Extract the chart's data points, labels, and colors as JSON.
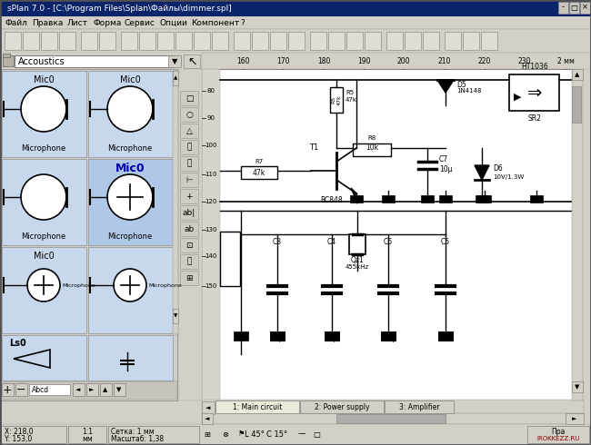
{
  "title_bar": "sPlan 7.0 - [C:\\Program Files\\Splan\\Файлы\\dimmer.spl]",
  "menu_items": [
    "Файл",
    "Правка",
    "Лист",
    "Форма",
    "Сервис",
    "Опции",
    "Компонент",
    "?"
  ],
  "component_lib": "Accoustics",
  "tab_labels": [
    "1: Main circuit",
    "2: Power supply",
    "3: Amplifier"
  ],
  "ruler_numbers": [
    "160",
    "170",
    "180",
    "190",
    "200",
    "210",
    "220",
    "230",
    "2 мм"
  ],
  "ruler_y_numbers": [
    "80",
    "90",
    "100",
    "110",
    "120",
    "130",
    "140",
    "150"
  ],
  "bg_title": "#0a246a",
  "bg_menu": "#d4d0c8",
  "bg_toolbar": "#d4d0c8",
  "bg_panel_light": "#c8d8ec",
  "bg_panel_highlight": "#b0c8e8",
  "bg_panel_dark": "#b8b4ac",
  "window_bg": "#d4d0c8",
  "status_right": "IROKKEZZ.RU"
}
